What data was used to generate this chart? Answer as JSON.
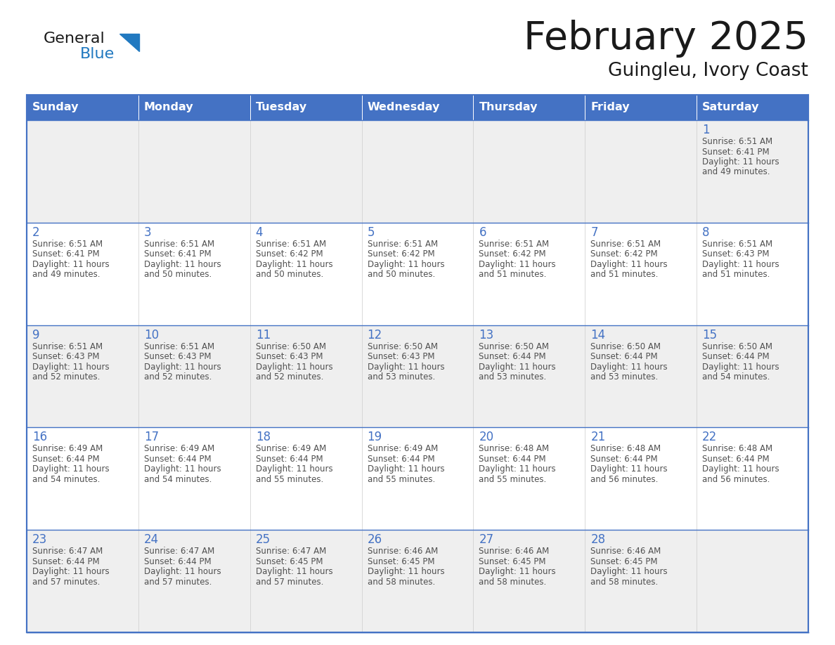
{
  "title": "February 2025",
  "subtitle": "Guingleu, Ivory Coast",
  "days_of_week": [
    "Sunday",
    "Monday",
    "Tuesday",
    "Wednesday",
    "Thursday",
    "Friday",
    "Saturday"
  ],
  "header_bg": "#4472C4",
  "header_text_color": "#FFFFFF",
  "cell_bg_row0": "#EFEFEF",
  "cell_bg_row1": "#F9F9F9",
  "cell_bg_row2": "#EFEFEF",
  "cell_bg_row3": "#F9F9F9",
  "cell_bg_row4": "#EFEFEF",
  "cell_border_top_color": "#4472C4",
  "day_number_color": "#4472C4",
  "cell_text_color": "#505050",
  "title_color": "#1a1a1a",
  "subtitle_color": "#1a1a1a",
  "logo_general_color": "#1a1a1a",
  "logo_blue_color": "#2179C0",
  "calendar_data": [
    [
      null,
      null,
      null,
      null,
      null,
      null,
      {
        "day": 1,
        "sunrise": "6:51 AM",
        "sunset": "6:41 PM",
        "daylight_h": "11 hours",
        "daylight_m": "and 49 minutes."
      }
    ],
    [
      {
        "day": 2,
        "sunrise": "6:51 AM",
        "sunset": "6:41 PM",
        "daylight_h": "11 hours",
        "daylight_m": "and 49 minutes."
      },
      {
        "day": 3,
        "sunrise": "6:51 AM",
        "sunset": "6:41 PM",
        "daylight_h": "11 hours",
        "daylight_m": "and 50 minutes."
      },
      {
        "day": 4,
        "sunrise": "6:51 AM",
        "sunset": "6:42 PM",
        "daylight_h": "11 hours",
        "daylight_m": "and 50 minutes."
      },
      {
        "day": 5,
        "sunrise": "6:51 AM",
        "sunset": "6:42 PM",
        "daylight_h": "11 hours",
        "daylight_m": "and 50 minutes."
      },
      {
        "day": 6,
        "sunrise": "6:51 AM",
        "sunset": "6:42 PM",
        "daylight_h": "11 hours",
        "daylight_m": "and 51 minutes."
      },
      {
        "day": 7,
        "sunrise": "6:51 AM",
        "sunset": "6:42 PM",
        "daylight_h": "11 hours",
        "daylight_m": "and 51 minutes."
      },
      {
        "day": 8,
        "sunrise": "6:51 AM",
        "sunset": "6:43 PM",
        "daylight_h": "11 hours",
        "daylight_m": "and 51 minutes."
      }
    ],
    [
      {
        "day": 9,
        "sunrise": "6:51 AM",
        "sunset": "6:43 PM",
        "daylight_h": "11 hours",
        "daylight_m": "and 52 minutes."
      },
      {
        "day": 10,
        "sunrise": "6:51 AM",
        "sunset": "6:43 PM",
        "daylight_h": "11 hours",
        "daylight_m": "and 52 minutes."
      },
      {
        "day": 11,
        "sunrise": "6:50 AM",
        "sunset": "6:43 PM",
        "daylight_h": "11 hours",
        "daylight_m": "and 52 minutes."
      },
      {
        "day": 12,
        "sunrise": "6:50 AM",
        "sunset": "6:43 PM",
        "daylight_h": "11 hours",
        "daylight_m": "and 53 minutes."
      },
      {
        "day": 13,
        "sunrise": "6:50 AM",
        "sunset": "6:44 PM",
        "daylight_h": "11 hours",
        "daylight_m": "and 53 minutes."
      },
      {
        "day": 14,
        "sunrise": "6:50 AM",
        "sunset": "6:44 PM",
        "daylight_h": "11 hours",
        "daylight_m": "and 53 minutes."
      },
      {
        "day": 15,
        "sunrise": "6:50 AM",
        "sunset": "6:44 PM",
        "daylight_h": "11 hours",
        "daylight_m": "and 54 minutes."
      }
    ],
    [
      {
        "day": 16,
        "sunrise": "6:49 AM",
        "sunset": "6:44 PM",
        "daylight_h": "11 hours",
        "daylight_m": "and 54 minutes."
      },
      {
        "day": 17,
        "sunrise": "6:49 AM",
        "sunset": "6:44 PM",
        "daylight_h": "11 hours",
        "daylight_m": "and 54 minutes."
      },
      {
        "day": 18,
        "sunrise": "6:49 AM",
        "sunset": "6:44 PM",
        "daylight_h": "11 hours",
        "daylight_m": "and 55 minutes."
      },
      {
        "day": 19,
        "sunrise": "6:49 AM",
        "sunset": "6:44 PM",
        "daylight_h": "11 hours",
        "daylight_m": "and 55 minutes."
      },
      {
        "day": 20,
        "sunrise": "6:48 AM",
        "sunset": "6:44 PM",
        "daylight_h": "11 hours",
        "daylight_m": "and 55 minutes."
      },
      {
        "day": 21,
        "sunrise": "6:48 AM",
        "sunset": "6:44 PM",
        "daylight_h": "11 hours",
        "daylight_m": "and 56 minutes."
      },
      {
        "day": 22,
        "sunrise": "6:48 AM",
        "sunset": "6:44 PM",
        "daylight_h": "11 hours",
        "daylight_m": "and 56 minutes."
      }
    ],
    [
      {
        "day": 23,
        "sunrise": "6:47 AM",
        "sunset": "6:44 PM",
        "daylight_h": "11 hours",
        "daylight_m": "and 57 minutes."
      },
      {
        "day": 24,
        "sunrise": "6:47 AM",
        "sunset": "6:44 PM",
        "daylight_h": "11 hours",
        "daylight_m": "and 57 minutes."
      },
      {
        "day": 25,
        "sunrise": "6:47 AM",
        "sunset": "6:45 PM",
        "daylight_h": "11 hours",
        "daylight_m": "and 57 minutes."
      },
      {
        "day": 26,
        "sunrise": "6:46 AM",
        "sunset": "6:45 PM",
        "daylight_h": "11 hours",
        "daylight_m": "and 58 minutes."
      },
      {
        "day": 27,
        "sunrise": "6:46 AM",
        "sunset": "6:45 PM",
        "daylight_h": "11 hours",
        "daylight_m": "and 58 minutes."
      },
      {
        "day": 28,
        "sunrise": "6:46 AM",
        "sunset": "6:45 PM",
        "daylight_h": "11 hours",
        "daylight_m": "and 58 minutes."
      },
      null
    ]
  ],
  "row_bgs": [
    "#EFEFEF",
    "#FFFFFF",
    "#EFEFEF",
    "#FFFFFF",
    "#EFEFEF"
  ]
}
